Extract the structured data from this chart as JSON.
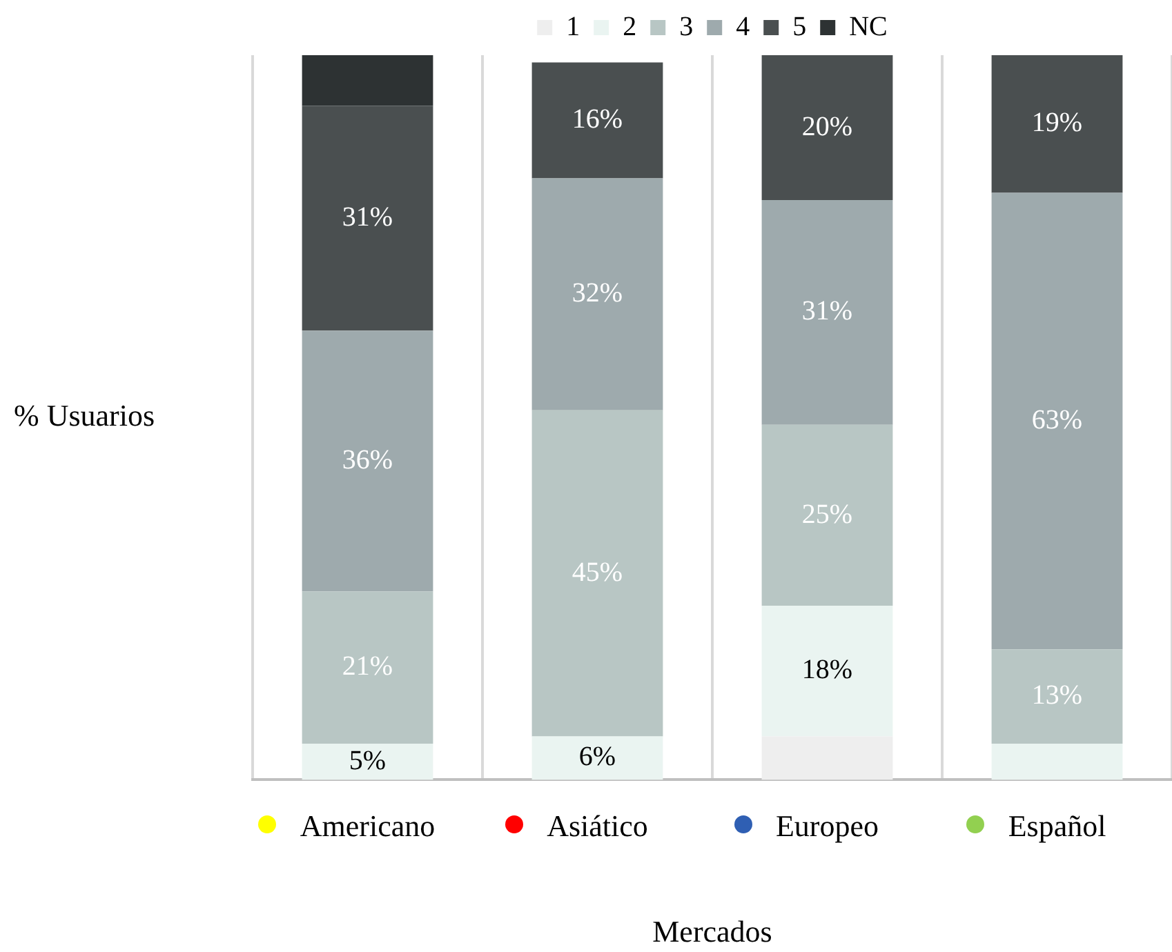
{
  "chart_data": {
    "type": "bar",
    "stacked": true,
    "xlabel": "Mercados",
    "ylabel": "% Usuarios",
    "categories": [
      "Americano",
      "Asiático",
      "Europeo",
      "Español"
    ],
    "ylim": [
      0,
      100
    ],
    "grid": "x",
    "legend": "top",
    "series": [
      {
        "name": "1",
        "color": "#eeeeee",
        "values": [
          0,
          0,
          6,
          0
        ],
        "value_labels": [
          null,
          null,
          null,
          null
        ]
      },
      {
        "name": "2",
        "color": "#eaf4f1",
        "values": [
          5,
          6,
          18,
          5
        ],
        "value_labels": [
          "5%",
          "6%",
          "18%",
          null
        ]
      },
      {
        "name": "3",
        "color": "#b8c6c4",
        "values": [
          21,
          45,
          25,
          13
        ],
        "value_labels": [
          "21%",
          "45%",
          "25%",
          "13%"
        ]
      },
      {
        "name": "4",
        "color": "#9eaaad",
        "values": [
          36,
          32,
          31,
          63
        ],
        "value_labels": [
          "36%",
          "32%",
          "31%",
          "63%"
        ]
      },
      {
        "name": "5",
        "color": "#4a4f50",
        "values": [
          31,
          16,
          20,
          19
        ],
        "value_labels": [
          "31%",
          "16%",
          "20%",
          "19%"
        ]
      },
      {
        "name": "NC",
        "color": "#2d3233",
        "values": [
          7,
          0,
          0,
          0
        ],
        "value_labels": [
          null,
          null,
          null,
          null
        ]
      }
    ]
  }
}
